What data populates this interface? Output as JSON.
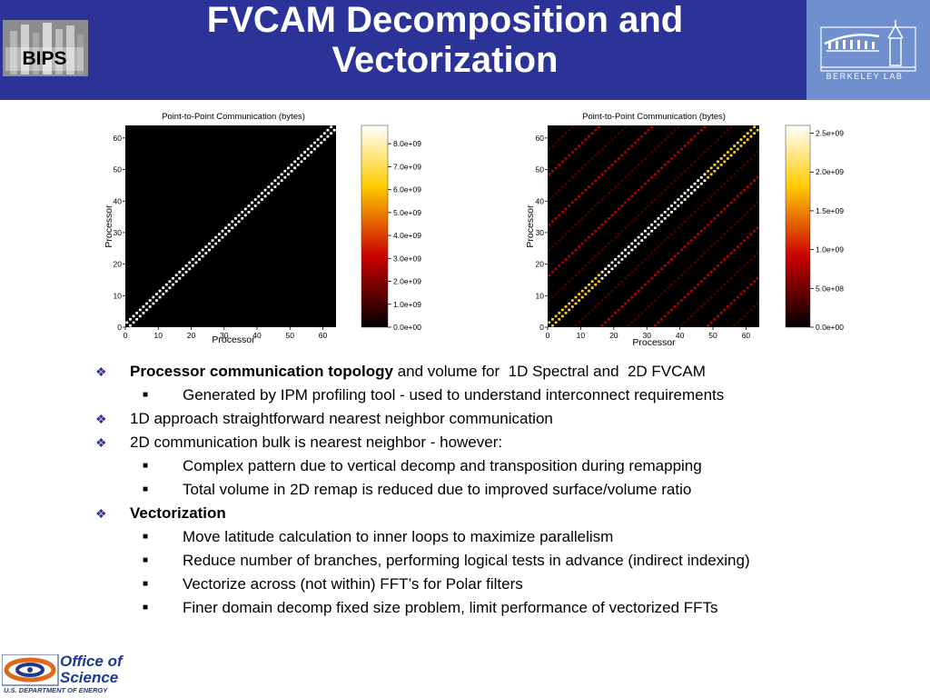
{
  "header": {
    "title_line1": "FVCAM Decomposition and",
    "title_line2": "Vectorization",
    "bips_logo_text": "BIPS",
    "berkeley_logo_text": "BERKELEY LAB",
    "header_color": "#2b3399",
    "berkeley_box_color": "#6f8fcf"
  },
  "footer": {
    "office_line1": "Office of",
    "office_line2": "Science",
    "department": "U.S. DEPARTMENT OF ENERGY"
  },
  "chart_data": [
    {
      "type": "heatmap",
      "title": "Point-to-Point Communication (bytes)",
      "xlabel": "Processor",
      "ylabel": "Processor",
      "xlim": [
        0,
        64
      ],
      "ylim": [
        0,
        64
      ],
      "x_ticks": [
        "0",
        "10",
        "20",
        "30",
        "40",
        "50",
        "60"
      ],
      "y_ticks": [
        "0",
        "10",
        "20",
        "30",
        "40",
        "50",
        "60"
      ],
      "colorbar_range": [
        0,
        8800000000.0
      ],
      "colorbar_ticks": [
        "0.0e+00",
        "1.0e+09",
        "2.0e+09",
        "3.0e+09",
        "4.0e+09",
        "5.0e+09",
        "6.0e+09",
        "7.0e+09",
        "8.0e+09"
      ],
      "pattern": "nearest-neighbor",
      "cells": [
        {
          "offset": 1,
          "value": 8800000000.0
        },
        {
          "offset": -1,
          "value": 8800000000.0
        }
      ]
    },
    {
      "type": "heatmap",
      "title": "Point-to-Point Communication (bytes)",
      "xlabel": "Processor",
      "ylabel": "Processor",
      "xlim": [
        0,
        64
      ],
      "ylim": [
        0,
        64
      ],
      "x_ticks": [
        "0",
        "10",
        "20",
        "30",
        "40",
        "50",
        "60"
      ],
      "y_ticks": [
        "0",
        "10",
        "20",
        "30",
        "40",
        "50",
        "60"
      ],
      "colorbar_range": [
        0,
        2600000000.0
      ],
      "colorbar_ticks": [
        "0.0e+00",
        "5.0e+08",
        "1.0e+09",
        "1.5e+09",
        "2.0e+09",
        "2.5e+09"
      ],
      "pattern": "2D-decomposition",
      "near_diagonal": [
        {
          "from": 0,
          "to": 15,
          "value": 1900000000.0
        },
        {
          "from": 16,
          "to": 31,
          "value": 2550000000.0
        },
        {
          "from": 32,
          "to": 47,
          "value": 2550000000.0
        },
        {
          "from": 48,
          "to": 63,
          "value": 1900000000.0
        }
      ],
      "off_diagonal": [
        {
          "offset": 16,
          "value": 800000000.0
        },
        {
          "offset": -16,
          "value": 800000000.0
        },
        {
          "offset": 32,
          "value": 800000000.0
        },
        {
          "offset": -32,
          "value": 800000000.0
        },
        {
          "offset": 48,
          "value": 800000000.0
        },
        {
          "offset": -48,
          "value": 800000000.0
        },
        {
          "offset": 24,
          "value": 300000000.0
        },
        {
          "offset": -24,
          "value": 300000000.0
        },
        {
          "offset": 8,
          "value": 300000000.0
        },
        {
          "offset": -8,
          "value": 300000000.0
        },
        {
          "offset": 40,
          "value": 300000000.0
        },
        {
          "offset": -40,
          "value": 300000000.0
        },
        {
          "offset": 56,
          "value": 300000000.0
        },
        {
          "offset": -56,
          "value": 300000000.0
        }
      ]
    }
  ],
  "bullets": [
    {
      "level": 1,
      "bold": "Processor communication topology",
      "text": " and volume for  1D Spectral and  2D FVCAM"
    },
    {
      "level": 2,
      "bold": "",
      "text": "Generated by IPM profiling tool - used to understand interconnect requirements"
    },
    {
      "level": 1,
      "bold": "",
      "text": "1D approach straightforward nearest neighbor communication"
    },
    {
      "level": 1,
      "bold": "",
      "text": "2D communication bulk is nearest neighbor - however:"
    },
    {
      "level": 2,
      "bold": "",
      "text": "Complex pattern due to vertical decomp and transposition during remapping"
    },
    {
      "level": 2,
      "bold": "",
      "text": "Total volume in 2D remap is reduced due to improved surface/volume ratio"
    },
    {
      "level": 1,
      "bold": "Vectorization",
      "text": ""
    },
    {
      "level": 2,
      "bold": "",
      "text": "Move latitude calculation to inner loops to maximize parallelism"
    },
    {
      "level": 2,
      "bold": "",
      "text": "Reduce number of branches, performing logical tests in advance (indirect indexing)"
    },
    {
      "level": 2,
      "bold": "",
      "text": "Vectorize across (not within) FFT’s for Polar filters"
    },
    {
      "level": 2,
      "bold": "",
      "text": "Finer domain decomp fixed size problem, limit performance of vectorized FFTs"
    }
  ]
}
